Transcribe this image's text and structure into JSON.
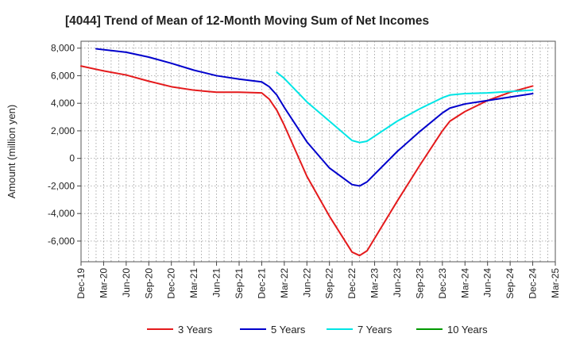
{
  "chart_data": {
    "type": "line",
    "title": "[4044]  Trend of Mean of 12-Month Moving Sum of Net Incomes",
    "xlabel": "",
    "ylabel": "Amount (million yen)",
    "ylim": [
      -7500,
      8500
    ],
    "yticks": [
      -6000,
      -4000,
      -2000,
      0,
      2000,
      4000,
      6000,
      8000
    ],
    "ytick_labels": [
      "-6,000",
      "-4,000",
      "-2,000",
      "0",
      "2,000",
      "4,000",
      "6,000",
      "8,000"
    ],
    "xlim": [
      "2019-12",
      "2025-03"
    ],
    "xtick_labels": [
      "Dec-19",
      "Mar-20",
      "Jun-20",
      "Sep-20",
      "Dec-20",
      "Mar-21",
      "Jun-21",
      "Sep-21",
      "Dec-21",
      "Mar-22",
      "Jun-22",
      "Sep-22",
      "Dec-22",
      "Mar-23",
      "Jun-23",
      "Sep-23",
      "Dec-23",
      "Mar-24",
      "Jun-24",
      "Sep-24",
      "Dec-24",
      "Mar-25"
    ],
    "grid": true,
    "legend_position": "bottom",
    "series": [
      {
        "name": "3 Years",
        "color": "#e41a1c",
        "points": [
          [
            "2019-12",
            6700
          ],
          [
            "2020-03",
            6350
          ],
          [
            "2020-06",
            6050
          ],
          [
            "2020-09",
            5600
          ],
          [
            "2020-12",
            5200
          ],
          [
            "2021-03",
            4950
          ],
          [
            "2021-06",
            4800
          ],
          [
            "2021-09",
            4800
          ],
          [
            "2021-12",
            4750
          ],
          [
            "2022-01",
            4300
          ],
          [
            "2022-02",
            3500
          ],
          [
            "2022-03",
            2400
          ],
          [
            "2022-06",
            -1300
          ],
          [
            "2022-09",
            -4200
          ],
          [
            "2022-12",
            -6800
          ],
          [
            "2023-01",
            -7050
          ],
          [
            "2023-02",
            -6700
          ],
          [
            "2023-06",
            -3100
          ],
          [
            "2023-09",
            -500
          ],
          [
            "2023-12",
            2000
          ],
          [
            "2024-01",
            2700
          ],
          [
            "2024-03",
            3400
          ],
          [
            "2024-06",
            4200
          ],
          [
            "2024-09",
            4800
          ],
          [
            "2024-12",
            5250
          ]
        ]
      },
      {
        "name": "5 Years",
        "color": "#0000cc",
        "points": [
          [
            "2020-02",
            7950
          ],
          [
            "2020-06",
            7700
          ],
          [
            "2020-09",
            7350
          ],
          [
            "2020-12",
            6900
          ],
          [
            "2021-03",
            6400
          ],
          [
            "2021-06",
            6000
          ],
          [
            "2021-09",
            5750
          ],
          [
            "2021-12",
            5550
          ],
          [
            "2022-01",
            5200
          ],
          [
            "2022-02",
            4600
          ],
          [
            "2022-03",
            3700
          ],
          [
            "2022-06",
            1200
          ],
          [
            "2022-09",
            -700
          ],
          [
            "2022-12",
            -1900
          ],
          [
            "2023-01",
            -2000
          ],
          [
            "2023-02",
            -1700
          ],
          [
            "2023-06",
            500
          ],
          [
            "2023-09",
            1950
          ],
          [
            "2023-12",
            3300
          ],
          [
            "2024-01",
            3650
          ],
          [
            "2024-03",
            3950
          ],
          [
            "2024-06",
            4200
          ],
          [
            "2024-09",
            4450
          ],
          [
            "2024-12",
            4700
          ]
        ]
      },
      {
        "name": "7 Years",
        "color": "#00e5e5",
        "points": [
          [
            "2022-02",
            6250
          ],
          [
            "2022-03",
            5800
          ],
          [
            "2022-06",
            4100
          ],
          [
            "2022-09",
            2700
          ],
          [
            "2022-12",
            1300
          ],
          [
            "2023-01",
            1150
          ],
          [
            "2023-02",
            1250
          ],
          [
            "2023-06",
            2700
          ],
          [
            "2023-09",
            3600
          ],
          [
            "2023-12",
            4400
          ],
          [
            "2024-01",
            4600
          ],
          [
            "2024-03",
            4700
          ],
          [
            "2024-06",
            4750
          ],
          [
            "2024-09",
            4850
          ],
          [
            "2024-12",
            4950
          ]
        ]
      },
      {
        "name": "10 Years",
        "color": "#009900",
        "points": []
      }
    ]
  }
}
